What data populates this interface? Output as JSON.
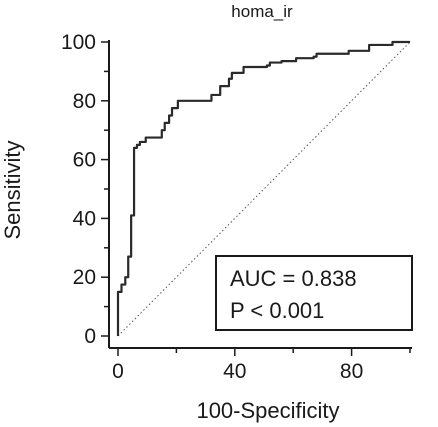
{
  "chart_data": {
    "type": "line",
    "title": "homa_ir",
    "xlabel": "100-Specificity",
    "ylabel": "Sensitivity",
    "xlim": [
      0,
      100
    ],
    "ylim": [
      0,
      100
    ],
    "xticks": [
      0,
      40,
      80
    ],
    "yticks": [
      0,
      20,
      40,
      60,
      80,
      100
    ],
    "xtick_labels": [
      "0",
      "40",
      "80"
    ],
    "ytick_labels": [
      "0",
      "20",
      "40",
      "60",
      "80",
      "100"
    ],
    "grid": false,
    "series": [
      {
        "x": [
          0,
          0,
          1.2,
          1.2,
          2.5,
          2.5,
          3.5,
          3.5,
          4.5,
          4.5,
          5.5,
          5.5,
          6.5,
          6.5,
          7.5,
          7.5,
          9.5,
          9.5,
          15,
          15,
          16,
          16,
          17.5,
          17.5,
          18.5,
          18.5,
          20.5,
          20.5,
          32,
          32,
          35,
          35,
          38,
          38,
          39,
          39,
          43,
          43,
          51,
          51,
          52,
          52,
          56,
          56,
          61,
          61,
          67,
          67,
          68,
          68,
          79,
          79,
          86,
          86,
          94,
          94,
          97,
          97,
          100
        ],
        "y": [
          0,
          15,
          15,
          17.5,
          17.5,
          20,
          20,
          27,
          27,
          41,
          41,
          64,
          64,
          65,
          65,
          66,
          66,
          67.5,
          67.5,
          70,
          70,
          72.5,
          72.5,
          75,
          75,
          77.5,
          77.5,
          80,
          80,
          82,
          82,
          85,
          85,
          87.5,
          87.5,
          89.5,
          89.5,
          91.5,
          91.5,
          92,
          92,
          93,
          93,
          93.5,
          93.5,
          94.5,
          94.5,
          95,
          95,
          96,
          96,
          97,
          97,
          99,
          99,
          100,
          100,
          100,
          100
        ]
      },
      {
        "x": [
          0,
          100
        ],
        "y": [
          0,
          100
        ]
      }
    ],
    "annotations": {
      "auc": "AUC = 0.838",
      "p": "P < 0.001"
    }
  },
  "colors": {
    "curve": "#2a2a2a",
    "reference": "#555555",
    "axis": "#1a1a1a"
  }
}
